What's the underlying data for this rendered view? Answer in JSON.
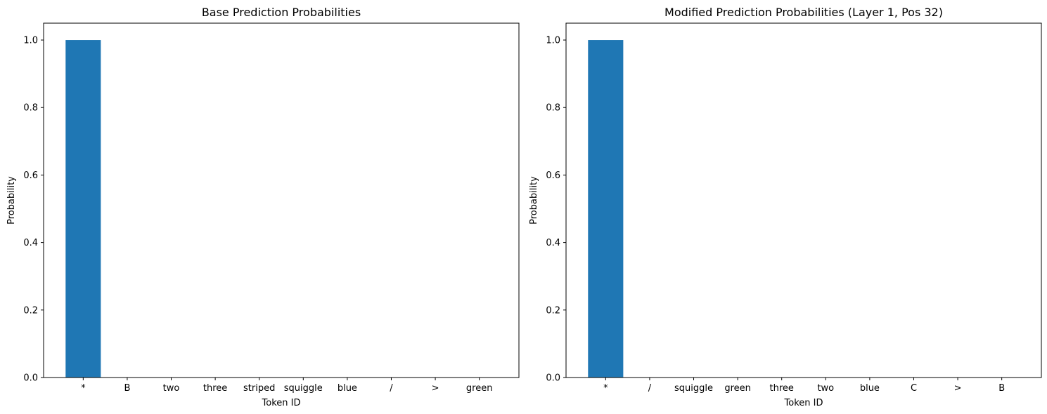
{
  "chart_data": [
    {
      "type": "bar",
      "title": "Base Prediction Probabilities",
      "xlabel": "Token ID",
      "ylabel": "Probability",
      "categories": [
        "*",
        "B",
        "two",
        "three",
        "striped",
        "squiggle",
        "blue",
        "/",
        ">",
        "green"
      ],
      "values": [
        1.0,
        0,
        0,
        0,
        0,
        0,
        0,
        0,
        0,
        0
      ],
      "ylim": [
        0,
        1.05
      ],
      "yticks": [
        "0.0",
        "0.2",
        "0.4",
        "0.6",
        "0.8",
        "1.0"
      ],
      "bar_color": "#1f77b4",
      "grid": false
    },
    {
      "type": "bar",
      "title": "Modified Prediction Probabilities (Layer 1, Pos 32)",
      "xlabel": "Token ID",
      "ylabel": "Probability",
      "categories": [
        "*",
        "/",
        "squiggle",
        "green",
        "three",
        "two",
        "blue",
        "C",
        ">",
        "B"
      ],
      "values": [
        1.0,
        0,
        0,
        0,
        0,
        0,
        0,
        0,
        0,
        0
      ],
      "ylim": [
        0,
        1.05
      ],
      "yticks": [
        "0.0",
        "0.2",
        "0.4",
        "0.6",
        "0.8",
        "1.0"
      ],
      "bar_color": "#1f77b4",
      "grid": false
    }
  ]
}
